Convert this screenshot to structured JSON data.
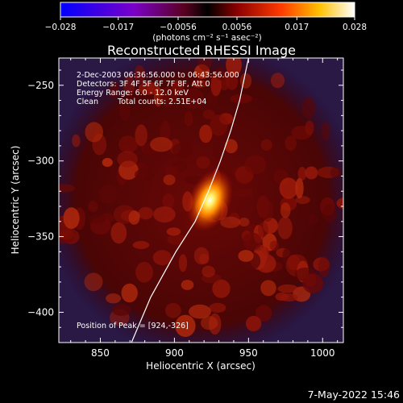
{
  "chart_data": {
    "type": "heatmap",
    "title": "Reconstructed RHESSI Image",
    "xlabel": "Heliocentric X (arcsec)",
    "ylabel": "Heliocentric Y (arcsec)",
    "xlim": [
      822,
      1014
    ],
    "ylim": [
      -420,
      -232
    ],
    "xticks": [
      850,
      900,
      950,
      1000
    ],
    "yticks": [
      -250,
      -300,
      -350,
      -400
    ],
    "colorbar": {
      "min": -0.028,
      "max": 0.028,
      "ticks": [
        {
          "value": -0.028,
          "label": "−0.028"
        },
        {
          "value": -0.017,
          "label": "−0.017"
        },
        {
          "value": -0.0056,
          "label": "−0.0056"
        },
        {
          "value": 0.0056,
          "label": "0.0056"
        },
        {
          "value": 0.017,
          "label": "0.017"
        },
        {
          "value": 0.028,
          "label": "0.028"
        }
      ],
      "unit_label": "(photons cm⁻² s⁻¹ asec⁻²)",
      "colormap": "blue-purple-red-yellow-white"
    },
    "annotations": {
      "time_range": "2-Dec-2003 06:36:56.000 to 06:43:56.000",
      "detectors": "Detectors: 3F 4F 5F 6F 7F 8F, Att 0",
      "energy": "Energy Range: 6.0 - 12.0 keV",
      "clean": "Clean",
      "total_counts": "Total counts: 2.51E+04",
      "peak": "Position of Peak = [924,-326]"
    },
    "peak": {
      "x": 924,
      "y": -326
    },
    "limb_line": [
      [
        871,
        -420
      ],
      [
        884,
        -390
      ],
      [
        901,
        -360
      ],
      [
        914,
        -340
      ],
      [
        923,
        -320
      ],
      [
        931,
        -300
      ],
      [
        938,
        -280
      ],
      [
        944,
        -260
      ],
      [
        950,
        -232
      ]
    ],
    "footer_timestamp": "7-May-2022 15:46"
  }
}
